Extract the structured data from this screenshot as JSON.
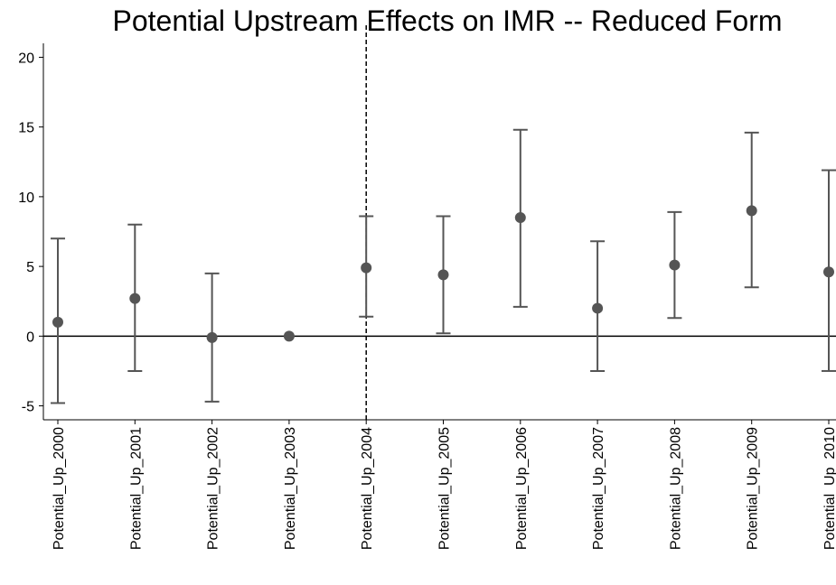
{
  "chart_data": {
    "type": "errorbar",
    "title": "Potential Upstream Effects on IMR -- Reduced Form",
    "categories": [
      "Potential_Up_2000",
      "Potential_Up_2001",
      "Potential_Up_2002",
      "Potential_Up_2003",
      "Potential_Up_2004",
      "Potential_Up_2005",
      "Potential_Up_2006",
      "Potential_Up_2007",
      "Potential_Up_2008",
      "Potential_Up_2009",
      "Potential_Up_2010"
    ],
    "series": [
      {
        "color": "#555555",
        "values": [
          1.0,
          2.7,
          -0.1,
          0,
          4.9,
          4.4,
          8.5,
          2.0,
          5.1,
          9.0,
          4.6
        ],
        "lower": [
          -4.8,
          -2.5,
          -4.7,
          null,
          1.4,
          0.2,
          2.1,
          -2.5,
          1.3,
          3.5,
          -2.5
        ],
        "upper": [
          7.0,
          8.0,
          4.5,
          null,
          8.6,
          8.6,
          14.8,
          6.8,
          8.9,
          14.6,
          11.9
        ]
      }
    ],
    "ylim": [
      -6,
      21
    ],
    "yticks": [
      -5,
      0,
      5,
      10,
      15,
      20
    ],
    "hline": 0,
    "vline_index": 4
  }
}
